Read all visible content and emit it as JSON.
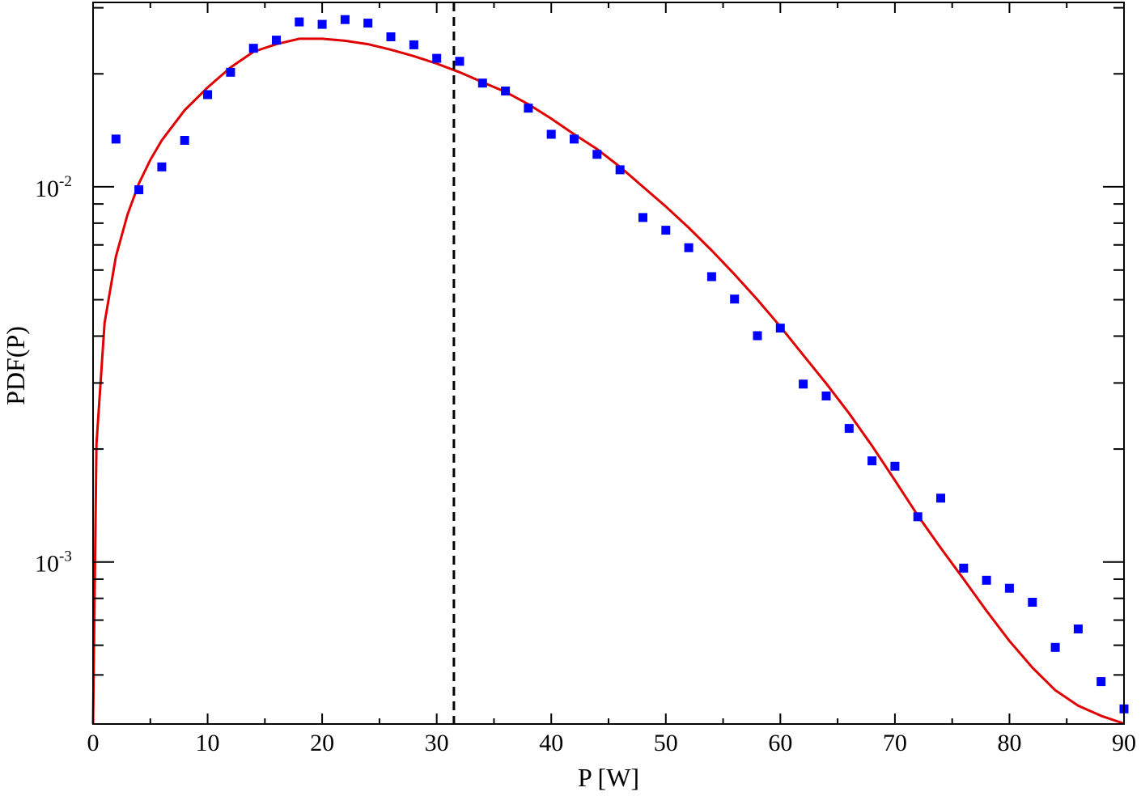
{
  "chart_data": {
    "type": "scatter",
    "title": "",
    "xlabel": "P [W]",
    "ylabel": "PDF(P)",
    "xlim": [
      0,
      90
    ],
    "ylim": [
      0.00037,
      0.031
    ],
    "yscale": "log",
    "grid": false,
    "x_ticks": [
      0,
      10,
      20,
      30,
      40,
      50,
      60,
      70,
      80,
      90
    ],
    "y_major_ticks": [
      {
        "value": 0.01,
        "base": "10",
        "exponent": "-2"
      },
      {
        "value": 0.001,
        "base": "10",
        "exponent": "-3"
      }
    ],
    "y_minor_ticks": [
      0.0005,
      0.0006,
      0.0007,
      0.0008,
      0.0009,
      0.002,
      0.003,
      0.004,
      0.005,
      0.006,
      0.007,
      0.008,
      0.009,
      0.02,
      0.03
    ],
    "colors": {
      "markers": "#0000ff",
      "curve": "#e00000",
      "vline": "#000000",
      "frame": "#000000"
    },
    "series": [
      {
        "type": "scatter",
        "marker": "square",
        "x": [
          2,
          4,
          6,
          8,
          10,
          12,
          14,
          16,
          18,
          20,
          22,
          24,
          26,
          28,
          30,
          32,
          34,
          36,
          38,
          40,
          42,
          44,
          46,
          48,
          50,
          52,
          54,
          56,
          58,
          60,
          62,
          64,
          66,
          68,
          70,
          72,
          74,
          76,
          78,
          80,
          82,
          84,
          86,
          88,
          90
        ],
        "y": [
          0.0134,
          0.00982,
          0.0113,
          0.0133,
          0.0176,
          0.0202,
          0.0234,
          0.0246,
          0.0275,
          0.0271,
          0.0279,
          0.0273,
          0.0251,
          0.0239,
          0.022,
          0.0216,
          0.0189,
          0.018,
          0.0162,
          0.0138,
          0.0134,
          0.0122,
          0.0111,
          0.00828,
          0.00766,
          0.00688,
          0.00576,
          0.00502,
          0.00401,
          0.0042,
          0.00298,
          0.00277,
          0.00227,
          0.00186,
          0.0018,
          0.00132,
          0.00148,
          0.000963,
          0.000894,
          0.000851,
          0.000781,
          0.000592,
          0.000663,
          0.00048,
          0.000406
        ]
      },
      {
        "type": "line",
        "x": [
          0,
          0.3,
          1,
          2,
          3,
          4,
          5,
          6,
          8,
          10,
          12,
          14,
          16,
          18,
          20,
          22,
          24,
          26,
          28,
          30,
          32,
          34,
          36,
          38,
          40,
          42,
          44,
          46,
          48,
          50,
          52,
          54,
          56,
          58,
          60,
          62,
          64,
          66,
          68,
          70,
          72,
          74,
          76,
          78,
          80,
          82,
          84,
          86,
          88,
          90
        ],
        "y": [
          0.00037,
          0.00206,
          0.00433,
          0.00653,
          0.00842,
          0.0102,
          0.0118,
          0.0133,
          0.016,
          0.0184,
          0.0208,
          0.0229,
          0.024,
          0.0248,
          0.0248,
          0.0245,
          0.024,
          0.0232,
          0.0223,
          0.0213,
          0.0202,
          0.019,
          0.0179,
          0.0166,
          0.0152,
          0.0138,
          0.0126,
          0.0113,
          0.01,
          0.00886,
          0.00778,
          0.00677,
          0.00584,
          0.005,
          0.00424,
          0.00356,
          0.00299,
          0.00249,
          0.00204,
          0.00165,
          0.00133,
          0.00109,
          0.0009,
          0.000741,
          0.000616,
          0.000523,
          0.000455,
          0.000414,
          0.000389,
          0.000371
        ]
      }
    ],
    "vertical_line": {
      "x": 31.5,
      "style": "dashed"
    }
  }
}
